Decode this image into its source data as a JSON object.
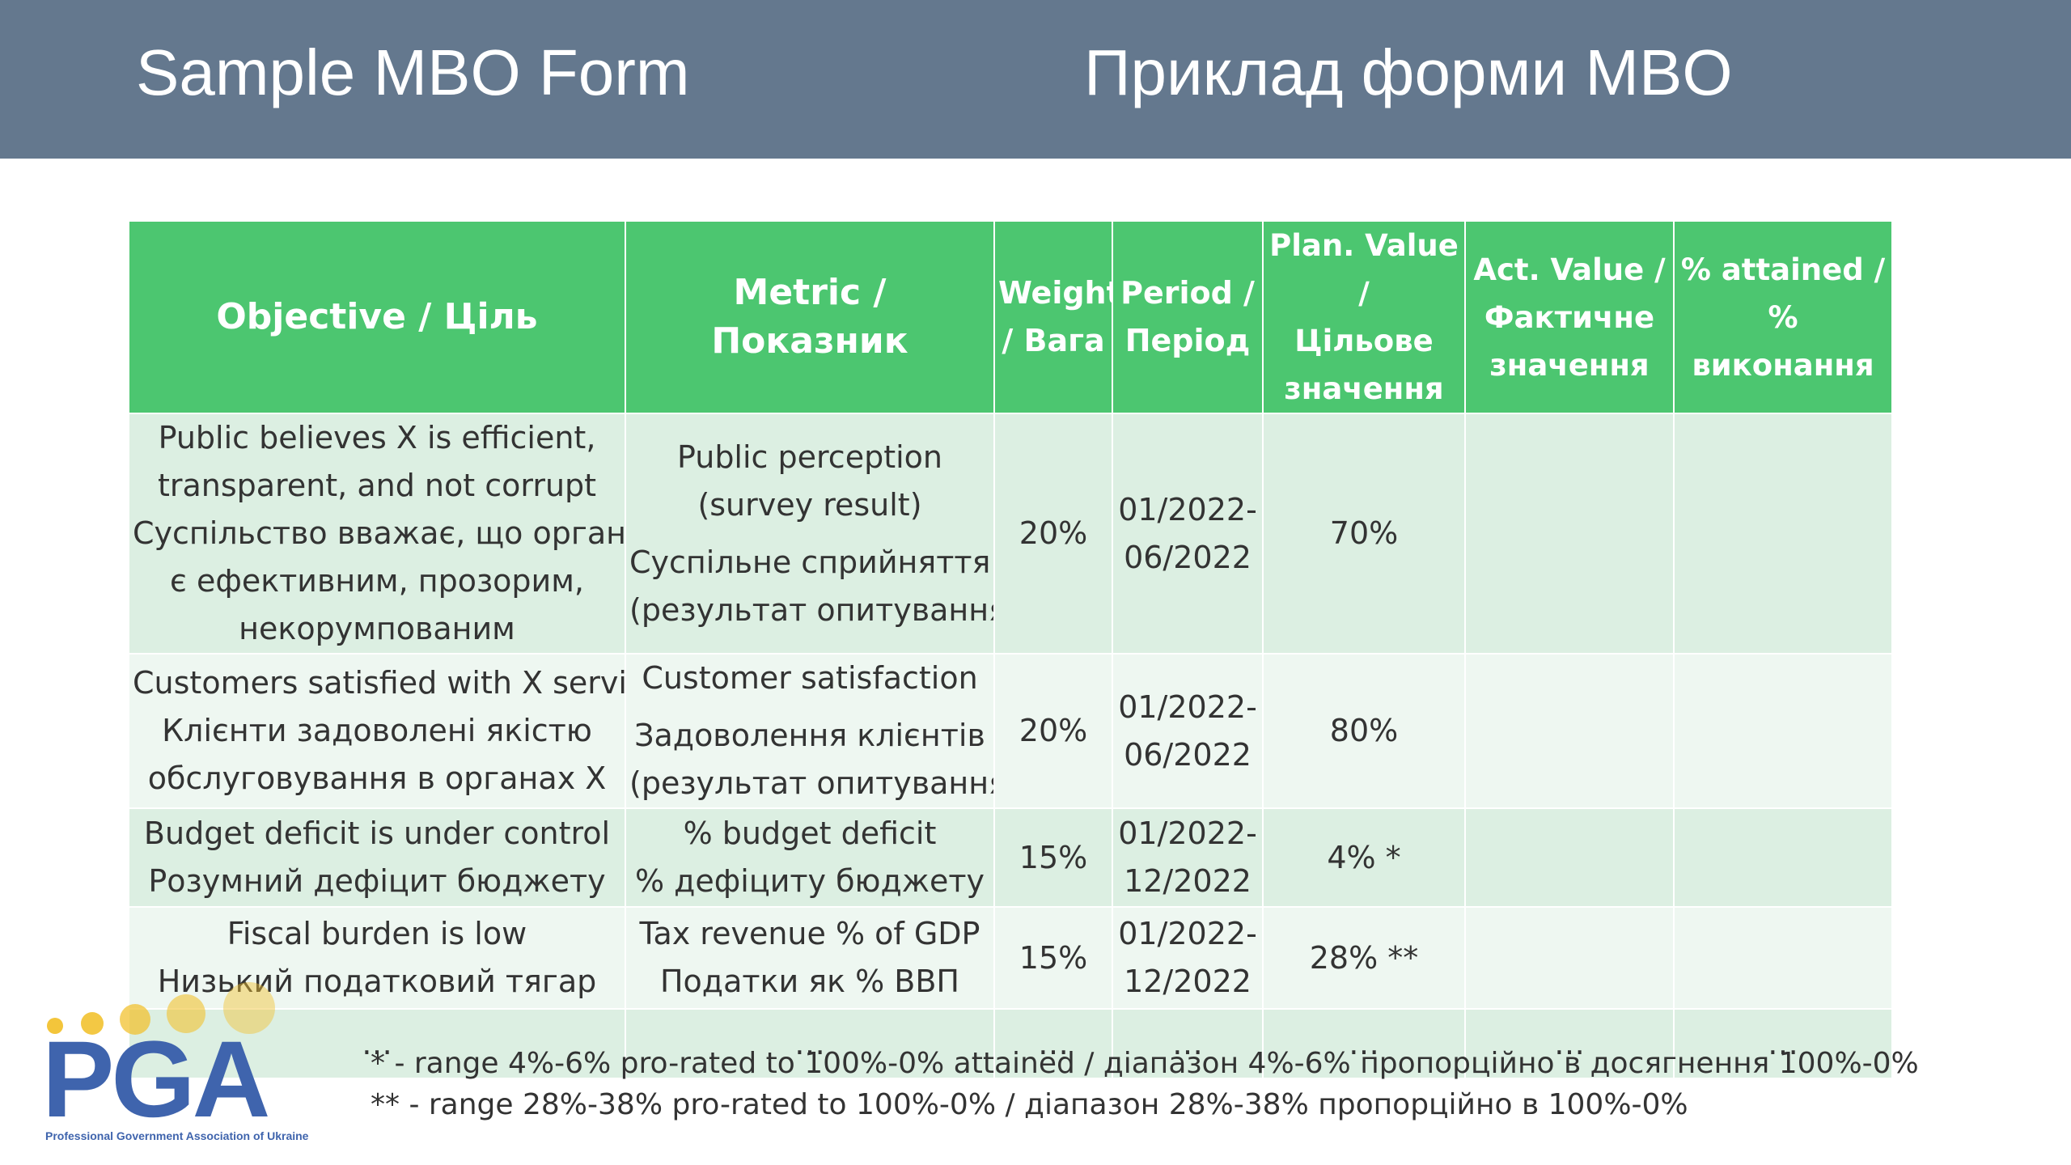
{
  "header": {
    "title_en": "Sample MBO Form",
    "title_uk": "Приклад форми MBO"
  },
  "table": {
    "headers": [
      [
        "Objective / Ціль"
      ],
      [
        "Metric / Показник"
      ],
      [
        "Weight",
        "/ Вага"
      ],
      [
        "Period /",
        "Період"
      ],
      [
        "Plan. Value /",
        "Цільове",
        "значення"
      ],
      [
        "Act. Value /",
        "Фактичне",
        "значення"
      ],
      [
        "% attained /",
        "% виконання"
      ]
    ],
    "rows": [
      {
        "objective": [
          "Public believes X is efficient,",
          "transparent, and not corrupt",
          "Суспільство вважає, що орган X",
          "є ефективним, прозорим,",
          "некорумпованим"
        ],
        "metric_en": [
          "Public perception",
          "(survey result)"
        ],
        "metric_uk": [
          "Суспільне сприйняття",
          "(результат опитування)"
        ],
        "weight": "20%",
        "period": [
          "01/2022-",
          "06/2022"
        ],
        "plan": "70%",
        "actual": "",
        "attained": ""
      },
      {
        "objective": [
          "Customers satisfied with X service",
          "Клієнти задоволені якістю",
          "обслуговування в органах X"
        ],
        "metric_en": [
          "Customer satisfaction"
        ],
        "metric_uk": [
          "Задоволення клієнтів",
          "(результат опитування)"
        ],
        "weight": "20%",
        "period": [
          "01/2022-",
          "06/2022"
        ],
        "plan": "80%",
        "actual": "",
        "attained": ""
      },
      {
        "objective": [
          "Budget deficit is under control",
          "Розумний дефіцит бюджету"
        ],
        "metric_en": [
          "% budget deficit"
        ],
        "metric_uk": [
          "% дефіциту бюджету"
        ],
        "weight": "15%",
        "period": [
          "01/2022-",
          "12/2022"
        ],
        "plan": "4% *",
        "actual": "",
        "attained": ""
      },
      {
        "objective": [
          "Fiscal burden is low",
          "Низький податковий тягар"
        ],
        "metric_en": [
          "Tax revenue % of GDP"
        ],
        "metric_uk": [
          "Податки як % ВВП"
        ],
        "weight": "15%",
        "period": [
          "01/2022-",
          "12/2022"
        ],
        "plan": "28% **",
        "actual": "",
        "attained": ""
      },
      {
        "objective": [
          "…"
        ],
        "metric_en": [
          "…"
        ],
        "metric_uk": [],
        "weight": "…",
        "period": [
          "…"
        ],
        "plan": "…",
        "actual": "…",
        "attained": "…"
      }
    ]
  },
  "footnotes": [
    "* - range 4%-6% pro-rated to 100%-0% attained / діапазон 4%-6% пропорційно в досягнення 100%-0%",
    "** - range 28%-38% pro-rated to 100%-0% / діапазон 28%-38% пропорційно в 100%-0%"
  ],
  "logo": {
    "text": "PGA",
    "subtitle": "Professional Government Association of Ukraine",
    "dot_color": "#f2c230",
    "text_color": "#3f64ad"
  },
  "colors": {
    "header_bar": "#64788e",
    "table_header": "#4cc670",
    "row_dark": "#dcefe2",
    "row_light": "#eef7f1"
  }
}
